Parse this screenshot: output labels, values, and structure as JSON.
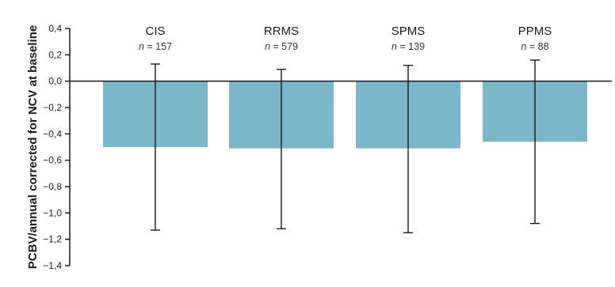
{
  "chart_data": {
    "type": "bar",
    "ylabel": "PCBV/annual corrected for NCV at baseline",
    "ylim": [
      -1.4,
      0.4
    ],
    "yticks": [
      "0,4",
      "0,2",
      "0,0",
      "−0,2",
      "−0,4",
      "−0,6",
      "−0,8",
      "−1,0",
      "−1,2",
      "−1,4"
    ],
    "ytick_values": [
      0.4,
      0.2,
      0.0,
      -0.2,
      -0.4,
      -0.6,
      -0.8,
      -1.0,
      -1.2,
      -1.4
    ],
    "categories": [
      "CIS",
      "RRMS",
      "SPMS",
      "PPMS"
    ],
    "n_values": [
      "157",
      "579",
      "139",
      "88"
    ],
    "n_symbol": "n",
    "values": [
      -0.5,
      -0.51,
      -0.51,
      -0.46
    ],
    "error_upper": [
      0.13,
      0.09,
      0.12,
      0.16
    ],
    "error_lower": [
      -1.13,
      -1.12,
      -1.15,
      -1.08
    ],
    "bar_color": "#7ab8c9",
    "grid": false,
    "legend": "none"
  }
}
